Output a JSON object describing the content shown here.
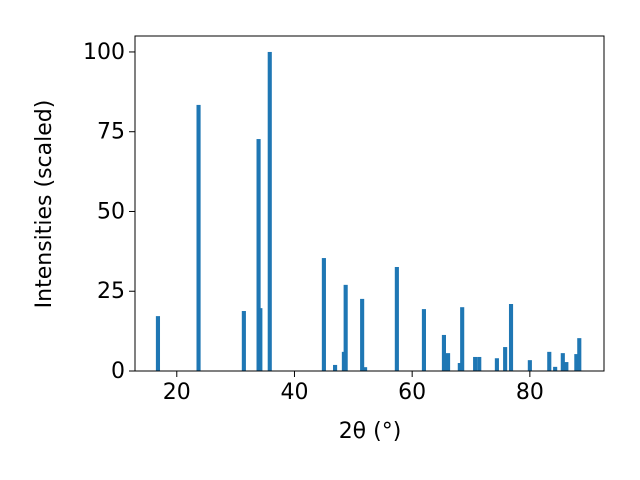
{
  "chart_data": {
    "type": "bar",
    "xlabel": "2θ (°)",
    "ylabel": "Intensities (scaled)",
    "color": "#1f77b4",
    "x": [
      16.8,
      23.7,
      31.4,
      33.9,
      34.2,
      35.8,
      45.0,
      46.9,
      48.4,
      48.7,
      51.5,
      52.0,
      57.4,
      62.0,
      65.4,
      66.1,
      68.1,
      68.5,
      70.7,
      71.4,
      74.4,
      75.8,
      76.8,
      80.0,
      83.3,
      84.3,
      85.6,
      86.2,
      87.9,
      88.4
    ],
    "values": [
      17.2,
      83.4,
      18.8,
      72.7,
      19.7,
      100,
      35.4,
      1.9,
      6,
      27,
      22.6,
      1.2,
      32.6,
      19.4,
      11.3,
      5.6,
      2.5,
      20,
      4.4,
      4.4,
      4,
      7.5,
      21,
      3.4,
      6,
      1.3,
      5.6,
      2.8,
      5.3,
      10.3
    ],
    "xlim": [
      12.9,
      92.6
    ],
    "ylim": [
      0,
      105
    ],
    "xticks": [
      20,
      40,
      60,
      80
    ],
    "yticks": [
      0,
      25,
      50,
      75,
      100
    ]
  }
}
